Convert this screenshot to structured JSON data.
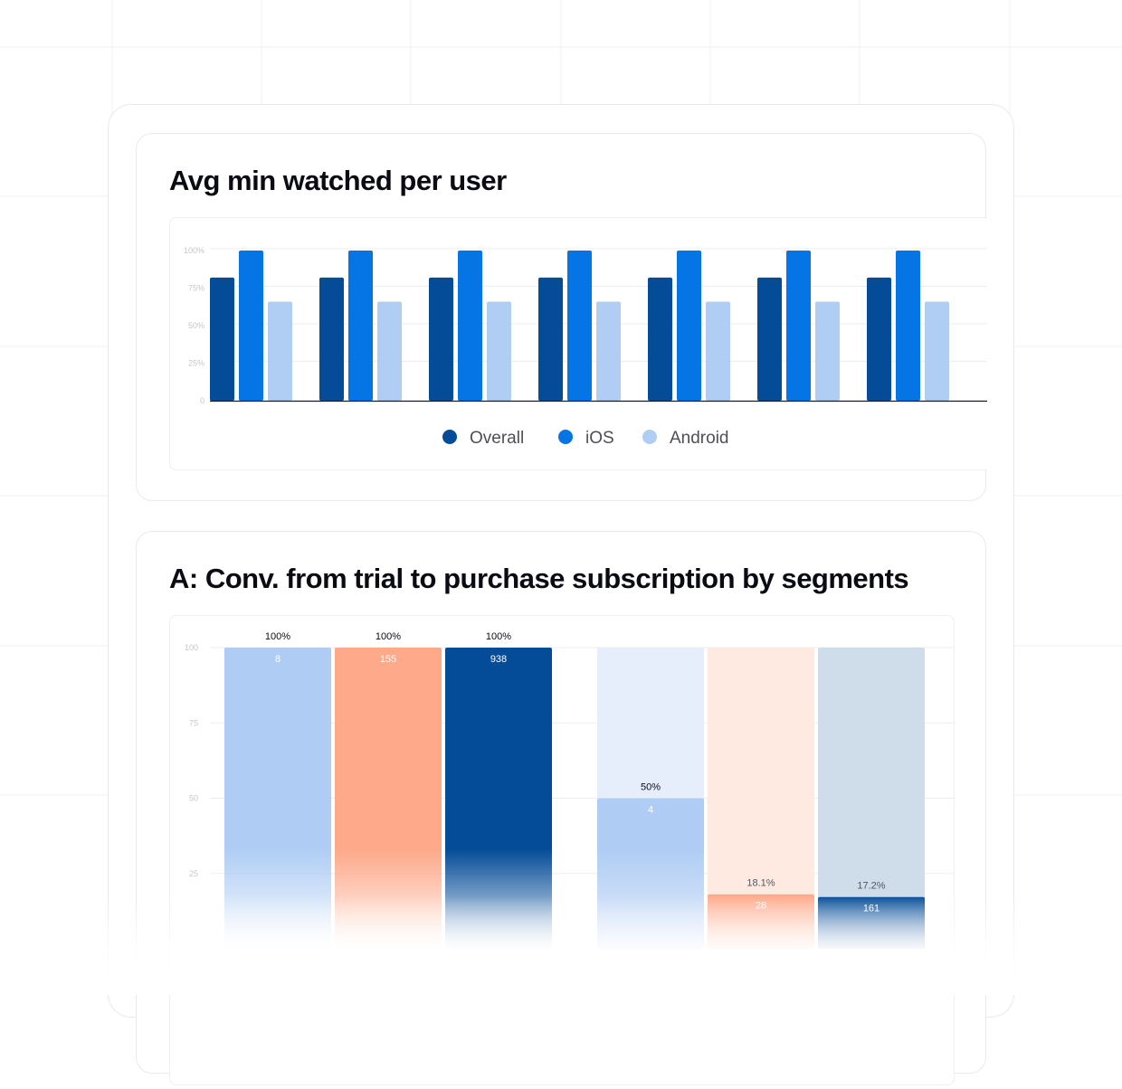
{
  "chart_data": [
    {
      "type": "bar",
      "title": "Avg min watched per user",
      "categories": [
        "",
        "",
        "",
        "",
        "",
        "",
        ""
      ],
      "series": [
        {
          "name": "Overall",
          "values": [
            82,
            82,
            82,
            82,
            82,
            82,
            82
          ],
          "color": "#054c98"
        },
        {
          "name": "iOS",
          "values": [
            100,
            100,
            100,
            100,
            100,
            100,
            100
          ],
          "color": "#0575e6"
        },
        {
          "name": "Android",
          "values": [
            66,
            66,
            66,
            66,
            66,
            66,
            66
          ],
          "color": "#b0cdf4"
        }
      ],
      "y_ticks": [
        "0",
        "25%",
        "50%",
        "75%",
        "100%"
      ],
      "ylim": [
        0,
        100
      ],
      "legend_position": "bottom-center"
    },
    {
      "type": "bar",
      "title": "A: Conv. from trial to purchase subscription by segments",
      "y_ticks": [
        "25",
        "50",
        "75",
        "100"
      ],
      "ylim": [
        0,
        100
      ],
      "bars": [
        {
          "value": 100,
          "pct_label": "100%",
          "count_label": "8",
          "color": "#afcdf4",
          "track_color": "#e7eefb"
        },
        {
          "value": 100,
          "pct_label": "100%",
          "count_label": "155",
          "color": "#fda98a",
          "track_color": "#ffeae2"
        },
        {
          "value": 100,
          "pct_label": "100%",
          "count_label": "938",
          "color": "#054c98",
          "track_color": "#cfdcea"
        },
        {
          "value": 50,
          "pct_label": "50%",
          "count_label": "4",
          "color": "#afcdf4",
          "track_color": "#e7eefb"
        },
        {
          "value": 18.1,
          "pct_label": "18.1%",
          "count_label": "28",
          "color": "#fda98a",
          "track_color": "#ffeae2"
        },
        {
          "value": 17.2,
          "pct_label": "17.2%",
          "count_label": "161",
          "color": "#054c98",
          "track_color": "#cfdcea"
        }
      ]
    }
  ],
  "colors": {
    "title": "#0b0b14",
    "axis_text": "#c6c6cc",
    "grid": "#ededf1",
    "legend_text": "#4e4e56"
  }
}
